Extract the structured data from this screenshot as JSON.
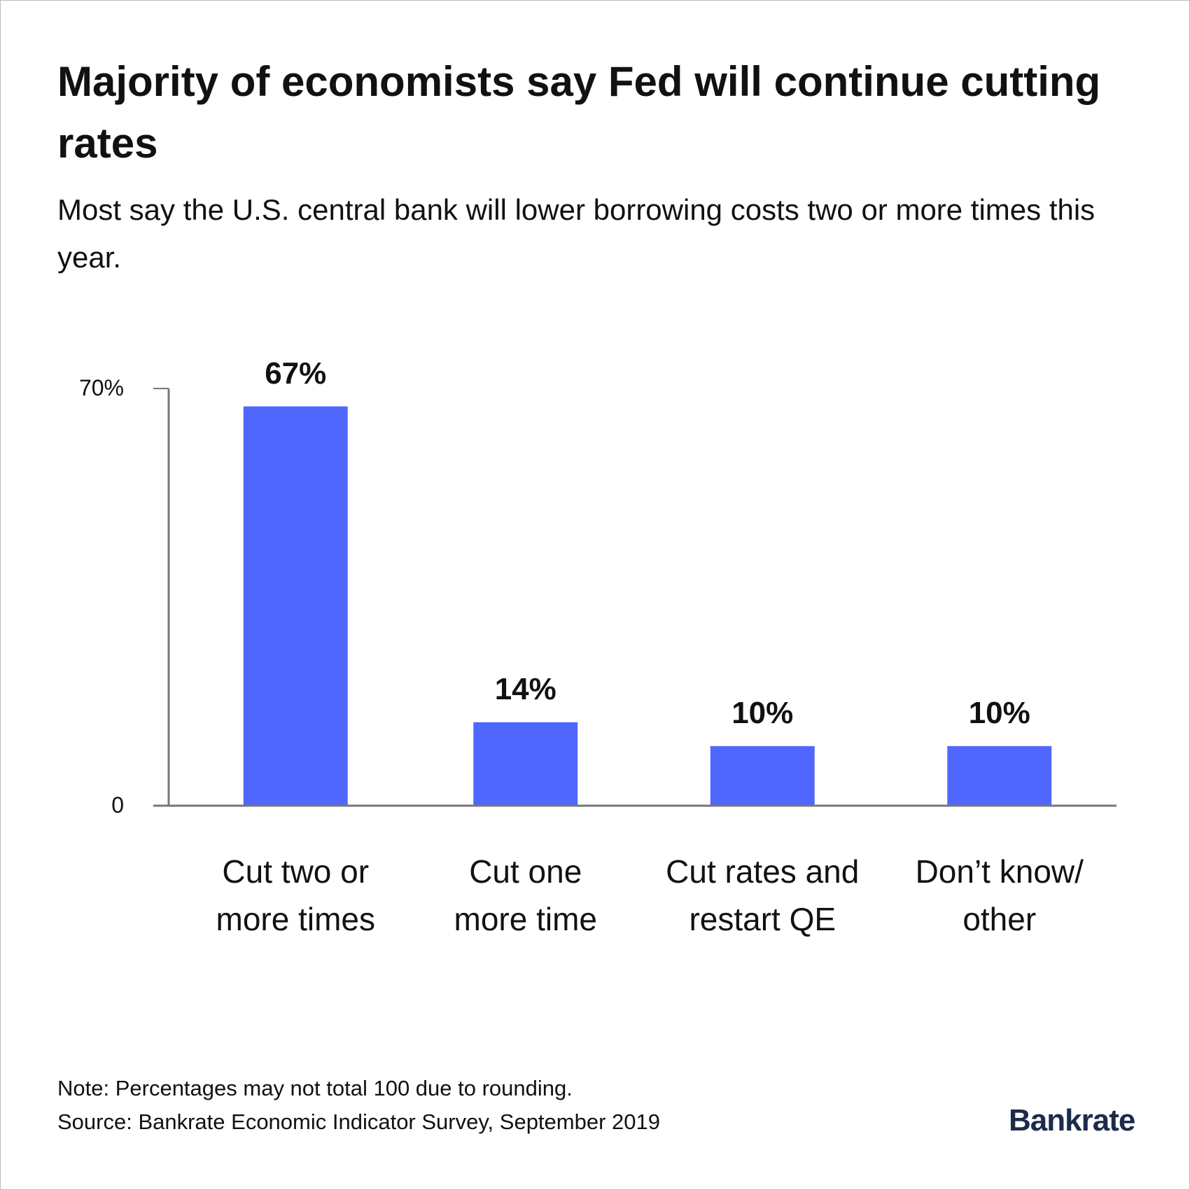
{
  "chart_data": {
    "type": "bar",
    "title": "Majority of economists say Fed will continue cutting rates",
    "subtitle": "Most say the U.S. central bank will lower borrowing costs two or more times this year.",
    "categories": [
      "Cut two or\nmore times",
      "Cut one\nmore time",
      "Cut rates and\nrestart QE",
      "Don’t know/\nother"
    ],
    "values": [
      67,
      14,
      10,
      10
    ],
    "value_labels": [
      "67%",
      "14%",
      "10%",
      "10%"
    ],
    "color": "#4f67ff",
    "ylim": [
      0,
      70
    ],
    "yticks": [
      0,
      {
        "value": 70,
        "label": "70%"
      }
    ],
    "note": "Note: Percentages may not total 100 due to rounding.",
    "source": "Source: Bankrate Economic Indicator Survey, September 2019",
    "logo": "Bankrate"
  }
}
